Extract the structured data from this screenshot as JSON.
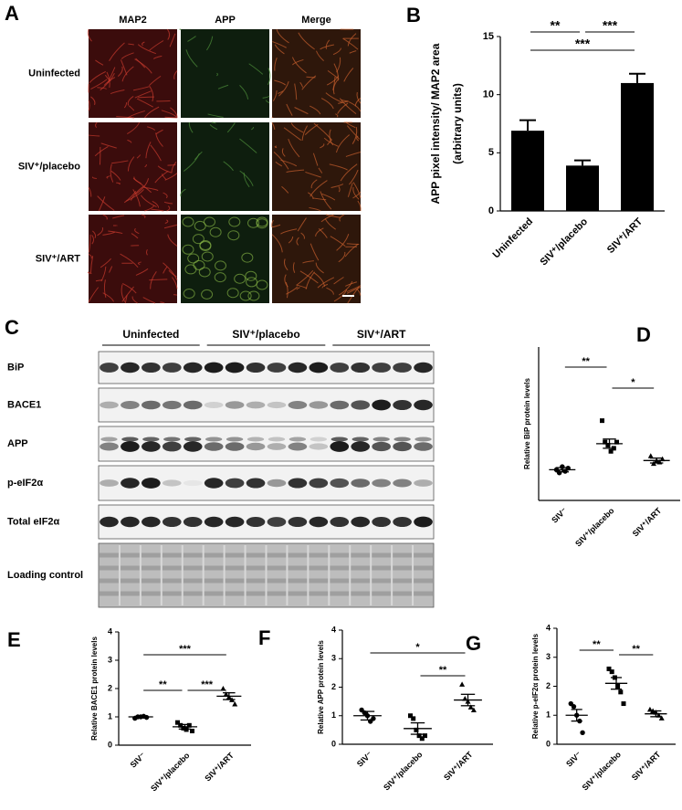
{
  "micrograph": {
    "panel_label": "A",
    "columns": [
      "MAP2",
      "APP",
      "Merge"
    ],
    "rows": [
      "Uninfected",
      "SIV⁺/placebo",
      "SIV⁺/ART"
    ]
  },
  "blot": {
    "panel_label": "C",
    "groups": [
      "Uninfected",
      "SIV⁺/placebo",
      "SIV⁺/ART"
    ],
    "rows": [
      "BiP",
      "BACE1",
      "APP",
      "p-eIF2α",
      "Total eIF2α",
      "Loading control"
    ]
  },
  "chart_data": [
    {
      "type": "bar",
      "panel_label": "B",
      "ylabel": [
        "APP pixel intensity/ MAP2 area",
        "(arbitrary units)"
      ],
      "categories": [
        "Uninfected",
        "SIV⁺/placebo",
        "SIV⁺/ART"
      ],
      "values": [
        6.9,
        3.9,
        11.0
      ],
      "errors": [
        0.9,
        0.45,
        0.8
      ],
      "color": "#000000",
      "ylim": [
        0,
        15
      ],
      "yticks": [
        0,
        5,
        10,
        15
      ],
      "annotations": [
        {
          "label": "**",
          "between": [
            "Uninfected",
            "SIV⁺/placebo"
          ]
        },
        {
          "label": "***",
          "between": [
            "SIV⁺/placebo",
            "SIV⁺/ART"
          ]
        },
        {
          "label": "***",
          "between": [
            "Uninfected",
            "SIV⁺/ART"
          ]
        }
      ]
    },
    {
      "type": "dot",
      "panel_label": "D",
      "ylabel": [
        "Relative BiP protein levels"
      ],
      "categories": [
        "SIV⁻",
        "SIV⁺/placebo",
        "SIV⁺/ART"
      ],
      "points": [
        [
          1.0,
          0.9,
          1.1,
          0.95,
          1.05
        ],
        [
          2.6,
          1.9,
          1.8,
          1.6,
          1.7,
          1.9
        ],
        [
          1.45,
          1.2,
          1.3,
          1.25,
          1.35
        ]
      ],
      "means": [
        1.0,
        1.85,
        1.3
      ],
      "sems": [
        0.07,
        0.15,
        0.08
      ],
      "markers": [
        "circle",
        "square",
        "triangle"
      ],
      "color": "#000000",
      "ylim": [
        0,
        5
      ],
      "annotations": [
        {
          "label": "**",
          "between": [
            "SIV⁻",
            "SIV⁺/placebo"
          ]
        },
        {
          "label": "*",
          "between": [
            "SIV⁺/placebo",
            "SIV⁺/ART"
          ]
        }
      ]
    },
    {
      "type": "dot",
      "panel_label": "E",
      "ylabel": [
        "Relative BACE1 protein levels"
      ],
      "categories": [
        "SIV⁻",
        "SIV⁺/placebo",
        "SIV⁺/ART"
      ],
      "points": [
        [
          0.95,
          1.0,
          1.0,
          1.02,
          0.98
        ],
        [
          0.8,
          0.7,
          0.6,
          0.55,
          0.7,
          0.5
        ],
        [
          2.0,
          1.8,
          1.7,
          1.6,
          1.45
        ]
      ],
      "means": [
        1.0,
        0.65,
        1.73
      ],
      "sems": [
        0.02,
        0.08,
        0.12
      ],
      "markers": [
        "circle",
        "square",
        "triangle"
      ],
      "color": "#000000",
      "ylim": [
        0,
        4
      ],
      "yticks": [
        0,
        1,
        2,
        3,
        4
      ],
      "annotations": [
        {
          "label": "***",
          "between": [
            "SIV⁻",
            "SIV⁺/ART"
          ]
        },
        {
          "label": "**",
          "between": [
            "SIV⁻",
            "SIV⁺/placebo"
          ]
        },
        {
          "label": "***",
          "between": [
            "SIV⁺/placebo",
            "SIV⁺/ART"
          ]
        }
      ]
    },
    {
      "type": "dot",
      "panel_label": "F",
      "ylabel": [
        "Relative APP protein levels"
      ],
      "categories": [
        "SIV⁻",
        "SIV⁺/placebo",
        "SIV⁺/ART"
      ],
      "points": [
        [
          1.2,
          1.1,
          1.0,
          0.8,
          0.9
        ],
        [
          1.0,
          0.9,
          0.5,
          0.3,
          0.2,
          0.3
        ],
        [
          2.1,
          1.6,
          1.5,
          1.3,
          1.2
        ]
      ],
      "means": [
        1.0,
        0.55,
        1.55
      ],
      "sems": [
        0.15,
        0.2,
        0.2
      ],
      "markers": [
        "circle",
        "square",
        "triangle"
      ],
      "color": "#000000",
      "ylim": [
        0,
        4
      ],
      "yticks": [
        0,
        1,
        2,
        3,
        4
      ],
      "annotations": [
        {
          "label": "*",
          "between": [
            "SIV⁻",
            "SIV⁺/ART"
          ]
        },
        {
          "label": "**",
          "between": [
            "SIV⁺/placebo",
            "SIV⁺/ART"
          ]
        }
      ]
    },
    {
      "type": "dot",
      "panel_label": "G",
      "ylabel": [
        "Relative p-eIF2α protein levels"
      ],
      "categories": [
        "SIV⁻",
        "SIV⁺/placebo",
        "SIV⁺/ART"
      ],
      "points": [
        [
          1.4,
          1.3,
          1.0,
          0.8,
          0.4
        ],
        [
          2.6,
          2.5,
          2.3,
          2.0,
          1.8,
          1.4
        ],
        [
          1.2,
          1.15,
          1.1,
          1.0,
          0.9
        ]
      ],
      "means": [
        1.0,
        2.1,
        1.05
      ],
      "sems": [
        0.2,
        0.2,
        0.1
      ],
      "markers": [
        "circle",
        "square",
        "triangle"
      ],
      "color": "#000000",
      "ylim": [
        0,
        4
      ],
      "yticks": [
        0,
        1,
        2,
        3,
        4
      ],
      "annotations": [
        {
          "label": "**",
          "between": [
            "SIV⁻",
            "SIV⁺/placebo"
          ]
        },
        {
          "label": "**",
          "between": [
            "SIV⁺/placebo",
            "SIV⁺/ART"
          ]
        }
      ]
    }
  ]
}
